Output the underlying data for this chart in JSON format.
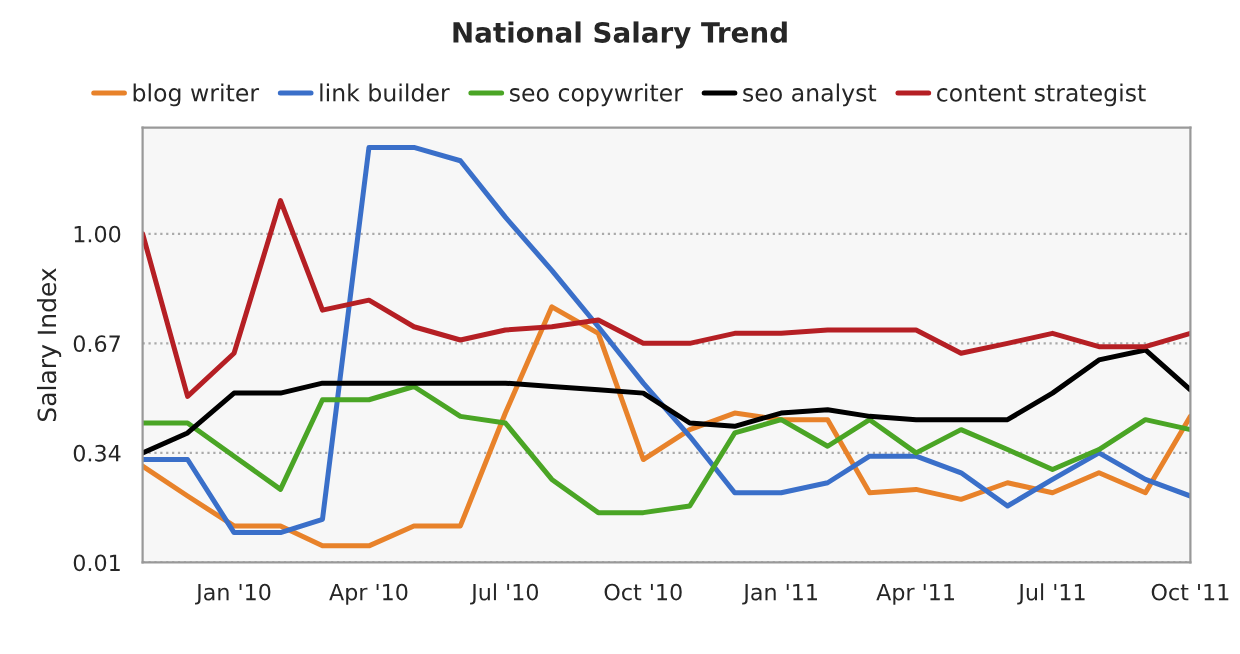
{
  "chart_data": {
    "type": "line",
    "title": "National Salary Trend",
    "ylabel": "Salary Index",
    "x": [
      "2009-11",
      "2009-12",
      "2010-01",
      "2010-02",
      "2010-03",
      "2010-04",
      "2010-05",
      "2010-06",
      "2010-07",
      "2010-08",
      "2010-09",
      "2010-10",
      "2010-11",
      "2010-12",
      "2011-01",
      "2011-02",
      "2011-03",
      "2011-04",
      "2011-05",
      "2011-06",
      "2011-07",
      "2011-08",
      "2011-09",
      "2011-10"
    ],
    "series": [
      {
        "name": "blog writer",
        "color": "#e8822a",
        "values": [
          0.3,
          0.21,
          0.12,
          0.12,
          0.06,
          0.06,
          0.12,
          0.12,
          0.46,
          0.78,
          0.7,
          0.32,
          0.41,
          0.46,
          0.44,
          0.44,
          0.22,
          0.23,
          0.2,
          0.25,
          0.22,
          0.28,
          0.22,
          0.45
        ]
      },
      {
        "name": "link builder",
        "color": "#3a6fc9",
        "values": [
          0.32,
          0.32,
          0.1,
          0.1,
          0.14,
          1.26,
          1.26,
          1.22,
          1.05,
          0.89,
          0.72,
          0.55,
          0.39,
          0.22,
          0.22,
          0.25,
          0.33,
          0.33,
          0.28,
          0.18,
          0.26,
          0.34,
          0.26,
          0.21
        ]
      },
      {
        "name": "seo copywriter",
        "color": "#4aa525",
        "values": [
          0.43,
          0.43,
          0.33,
          0.23,
          0.5,
          0.5,
          0.54,
          0.45,
          0.43,
          0.26,
          0.16,
          0.16,
          0.18,
          0.4,
          0.44,
          0.36,
          0.44,
          0.34,
          0.41,
          0.35,
          0.29,
          0.35,
          0.44,
          0.41
        ]
      },
      {
        "name": "seo analyst",
        "color": "#000000",
        "values": [
          0.34,
          0.4,
          0.52,
          0.52,
          0.55,
          0.55,
          0.55,
          0.55,
          0.55,
          0.54,
          0.53,
          0.52,
          0.43,
          0.42,
          0.46,
          0.47,
          0.45,
          0.44,
          0.44,
          0.44,
          0.52,
          0.62,
          0.65,
          0.53
        ]
      },
      {
        "name": "content strategist",
        "color": "#b51f24",
        "values": [
          1.0,
          0.51,
          0.64,
          1.1,
          0.77,
          0.8,
          0.72,
          0.68,
          0.71,
          0.72,
          0.74,
          0.67,
          0.67,
          0.7,
          0.7,
          0.71,
          0.71,
          0.71,
          0.64,
          0.67,
          0.7,
          0.66,
          0.66,
          0.7
        ]
      }
    ],
    "xlim": [
      "2009-11",
      "2011-10"
    ],
    "xticks": [
      {
        "value": "2010-01",
        "label": "Jan '10"
      },
      {
        "value": "2010-04",
        "label": "Apr '10"
      },
      {
        "value": "2010-07",
        "label": "Jul '10"
      },
      {
        "value": "2010-10",
        "label": "Oct '10"
      },
      {
        "value": "2011-01",
        "label": "Jan '11"
      },
      {
        "value": "2011-04",
        "label": "Apr '11"
      },
      {
        "value": "2011-07",
        "label": "Jul '11"
      },
      {
        "value": "2011-10",
        "label": "Oct '11"
      }
    ],
    "ylim": [
      0.01,
      1.32
    ],
    "yticks": [
      {
        "value": 0.01,
        "label": "0.01"
      },
      {
        "value": 0.34,
        "label": "0.34"
      },
      {
        "value": 0.67,
        "label": "0.67"
      },
      {
        "value": 1.0,
        "label": "1.00"
      }
    ],
    "grid": "y",
    "legend": "top",
    "marker": "none",
    "line_style": "solid"
  }
}
